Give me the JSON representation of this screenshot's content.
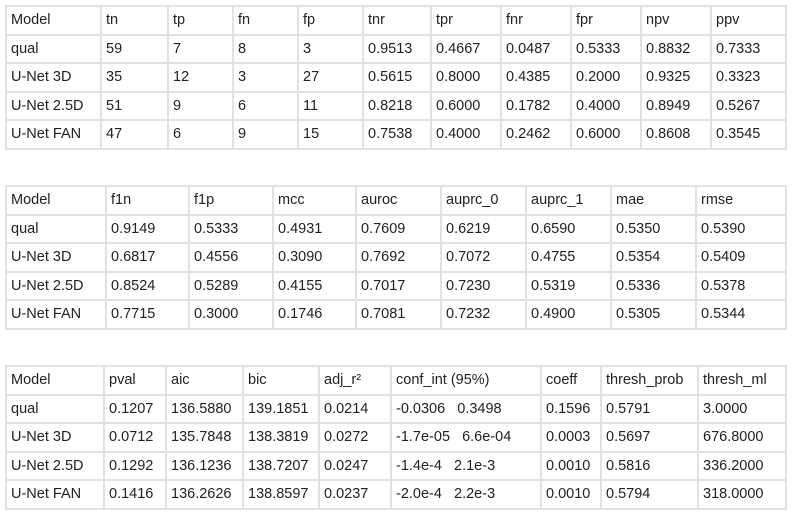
{
  "tables": [
    {
      "headers": [
        "Model",
        "tn",
        "tp",
        "fn",
        "fp",
        "tnr",
        "tpr",
        "fnr",
        "fpr",
        "npv",
        "ppv"
      ],
      "rows": [
        [
          "qual",
          "59",
          "7",
          "8",
          "3",
          "0.9513",
          "0.4667",
          "0.0487",
          "0.5333",
          "0.8832",
          "0.7333"
        ],
        [
          "U-Net 3D",
          "35",
          "12",
          "3",
          "27",
          "0.5615",
          "0.8000",
          "0.4385",
          "0.2000",
          "0.9325",
          "0.3323"
        ],
        [
          "U-Net 2.5D",
          "51",
          "9",
          "6",
          "11",
          "0.8218",
          "0.6000",
          "0.1782",
          "0.4000",
          "0.8949",
          "0.5267"
        ],
        [
          "U-Net FAN",
          "47",
          "6",
          "9",
          "15",
          "0.7538",
          "0.4000",
          "0.2462",
          "0.6000",
          "0.8608",
          "0.3545"
        ]
      ]
    },
    {
      "headers": [
        "Model",
        "f1n",
        "f1p",
        "mcc",
        "auroc",
        "auprc_0",
        "auprc_1",
        "mae",
        "rmse"
      ],
      "rows": [
        [
          "qual",
          "0.9149",
          "0.5333",
          "0.4931",
          "0.7609",
          "0.6219",
          "0.6590",
          "0.5350",
          "0.5390"
        ],
        [
          "U-Net 3D",
          "0.6817",
          "0.4556",
          "0.3090",
          "0.7692",
          "0.7072",
          "0.4755",
          "0.5354",
          "0.5409"
        ],
        [
          "U-Net 2.5D",
          "0.8524",
          "0.5289",
          "0.4155",
          "0.7017",
          "0.7230",
          "0.5319",
          "0.5336",
          "0.5378"
        ],
        [
          "U-Net FAN",
          "0.7715",
          "0.3000",
          "0.1746",
          "0.7081",
          "0.7232",
          "0.4900",
          "0.5305",
          "0.5344"
        ]
      ]
    },
    {
      "headers": [
        "Model",
        "pval",
        "aic",
        "bic",
        "adj_r²",
        "conf_int (95%)",
        "coeff",
        "thresh_prob",
        "thresh_ml"
      ],
      "rows": [
        [
          "qual",
          "0.1207",
          "136.5880",
          "139.1851",
          "0.0214",
          "-0.0306   0.3498",
          "0.1596",
          "0.5791",
          "3.0000"
        ],
        [
          "U-Net 3D",
          "0.0712",
          "135.7848",
          "138.3819",
          "0.0272",
          "-1.7e-05   6.6e-04",
          "0.0003",
          "0.5697",
          "676.8000"
        ],
        [
          "U-Net 2.5D",
          "0.1292",
          "136.1236",
          "138.7207",
          "0.0247",
          "-1.4e-4   2.1e-3",
          "0.0010",
          "0.5816",
          "336.2000"
        ],
        [
          "U-Net FAN",
          "0.1416",
          "136.2626",
          "138.8597",
          "0.0237",
          "-2.0e-4   2.2e-3",
          "0.0010",
          "0.5794",
          "318.0000"
        ]
      ]
    }
  ]
}
